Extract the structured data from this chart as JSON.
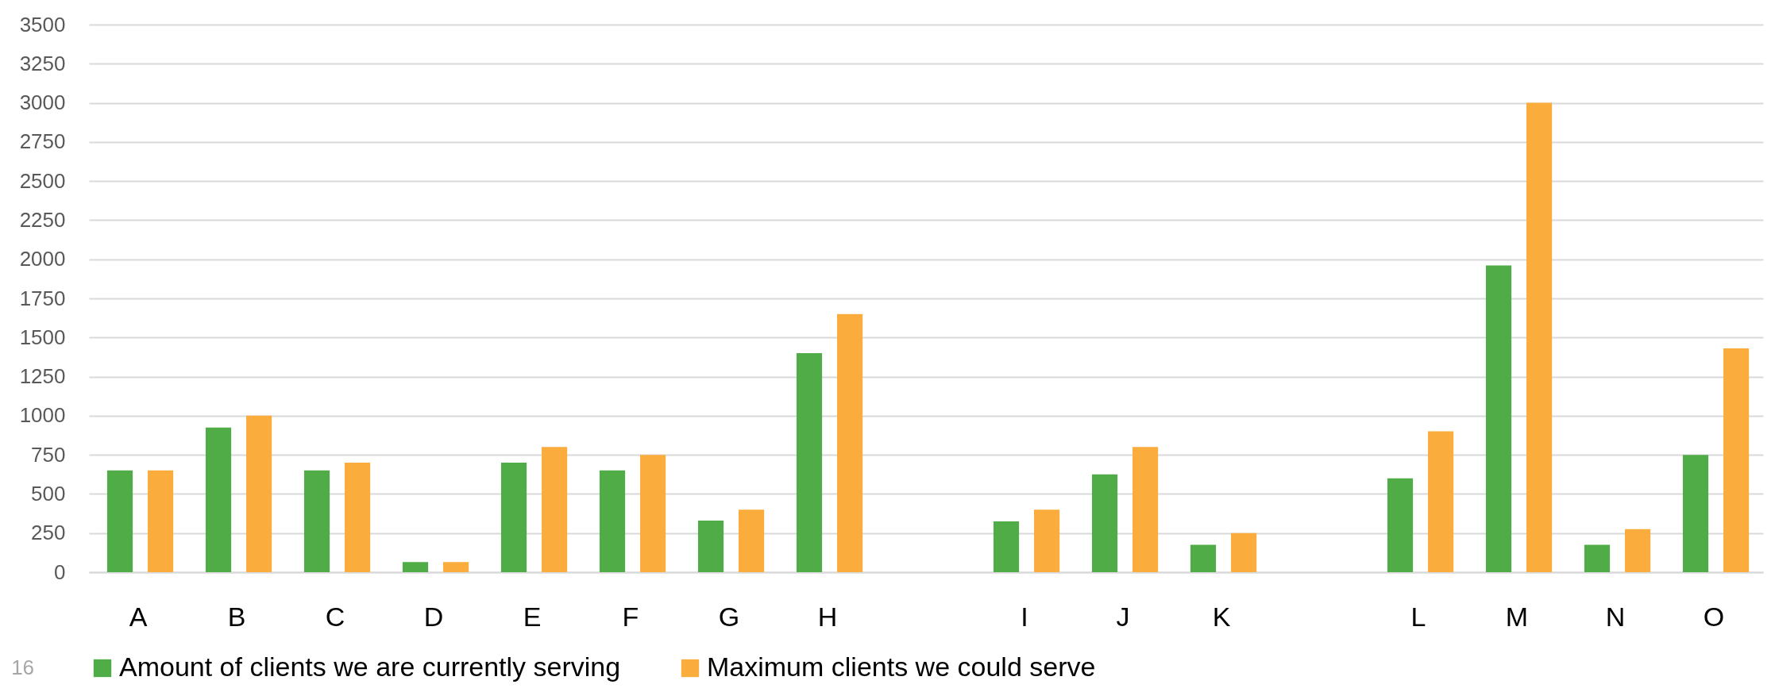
{
  "chart_data": {
    "type": "bar",
    "categories": [
      "A",
      "B",
      "C",
      "D",
      "E",
      "F",
      "G",
      "H",
      null,
      "I",
      "J",
      "K",
      null,
      "L",
      "M",
      "N",
      "O"
    ],
    "series": [
      {
        "name": "Amount of clients we are currently serving",
        "color": "#50ac46",
        "values": [
          650,
          925,
          650,
          65,
          700,
          650,
          330,
          1400,
          null,
          325,
          625,
          175,
          null,
          600,
          1960,
          175,
          750
        ]
      },
      {
        "name": "Maximum clients we could serve",
        "color": "#faad3c",
        "values": [
          650,
          1000,
          700,
          65,
          800,
          750,
          400,
          1650,
          null,
          400,
          800,
          250,
          null,
          900,
          3000,
          275,
          1430
        ]
      }
    ],
    "ylim": [
      0,
      3500
    ],
    "yticks": [
      0,
      250,
      500,
      750,
      1000,
      1250,
      1500,
      1750,
      2000,
      2250,
      2500,
      2750,
      3000,
      3250,
      3500
    ],
    "grid": "y",
    "legend": "bottom",
    "annotations": [
      "16"
    ]
  }
}
